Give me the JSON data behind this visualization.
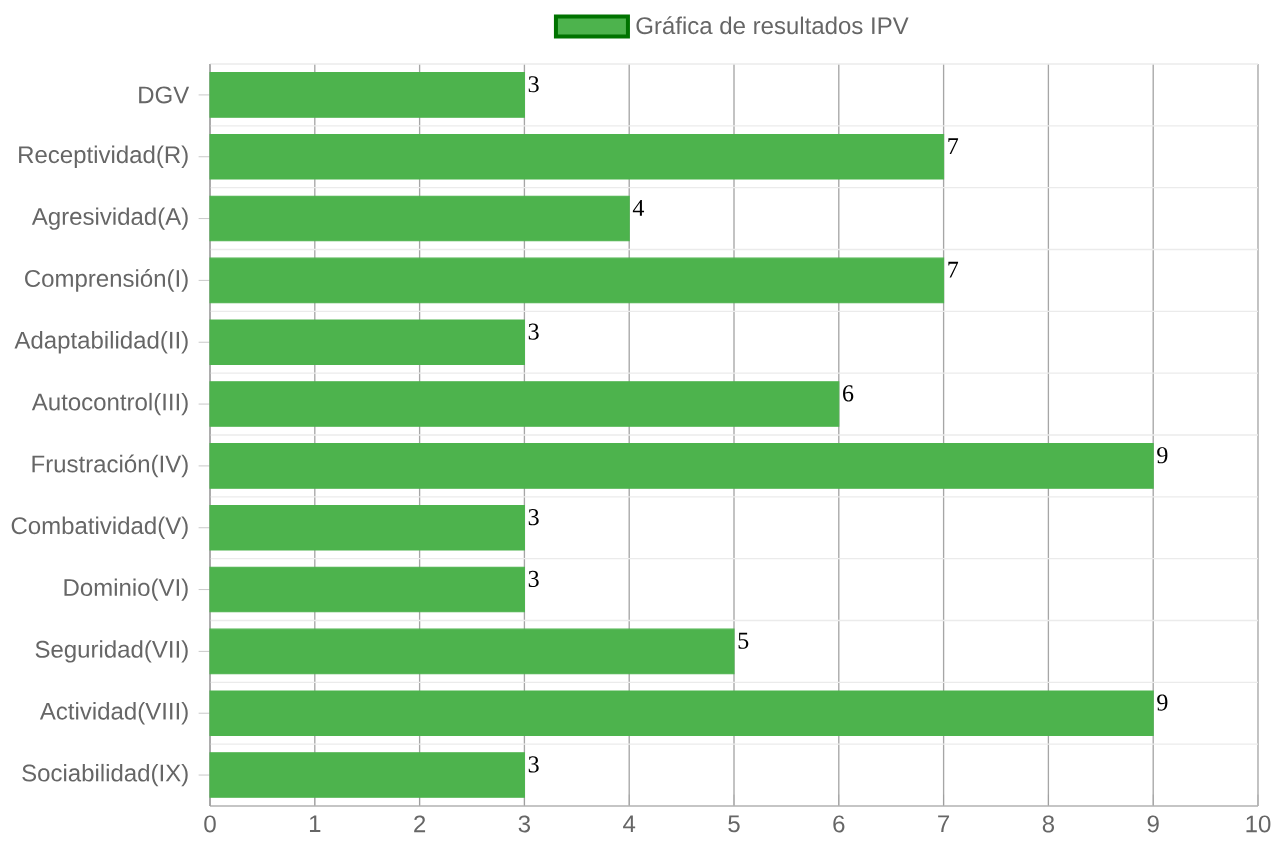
{
  "chart_data": {
    "type": "bar",
    "orientation": "horizontal",
    "categories": [
      "DGV",
      "Receptividad(R)",
      "Agresividad(A)",
      "Comprensión(I)",
      "Adaptabilidad(II)",
      "Autocontrol(III)",
      "Frustración(IV)",
      "Combatividad(V)",
      "Dominio(VI)",
      "Seguridad(VII)",
      "Actividad(VIII)",
      "Sociabilidad(IX)"
    ],
    "series": [
      {
        "name": "Gráfica de resultados IPV",
        "color": "#4db34d",
        "values": [
          3,
          7,
          4,
          7,
          3,
          6,
          9,
          3,
          3,
          5,
          9,
          3
        ]
      }
    ],
    "xlim": [
      0,
      10
    ],
    "xticks": [
      0,
      1,
      2,
      3,
      4,
      5,
      6,
      7,
      8,
      9,
      10
    ],
    "grid": true,
    "legend": "top",
    "data_labels": true
  }
}
